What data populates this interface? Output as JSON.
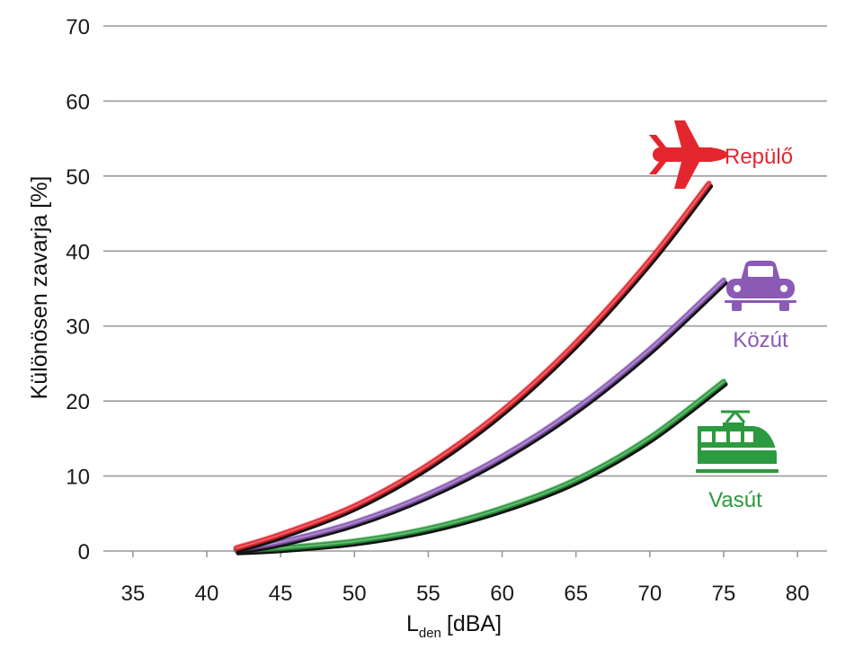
{
  "chart_data": {
    "type": "line",
    "title": "",
    "xlabel": {
      "main": "L",
      "sub": "den",
      "unit": "[dBA]"
    },
    "ylabel": "Különösen zavarja [%]",
    "xlim": [
      33,
      82
    ],
    "ylim": [
      0,
      70
    ],
    "xticks": [
      "35",
      "40",
      "45",
      "50",
      "55",
      "60",
      "65",
      "70",
      "75",
      "80"
    ],
    "yticks": [
      "0",
      "10",
      "20",
      "30",
      "40",
      "50",
      "60",
      "70"
    ],
    "grid": "horizontal",
    "series": [
      {
        "name": "Repülő",
        "color": "#e3262e",
        "icon": "airplane-icon",
        "x": [
          42,
          45,
          50,
          55,
          60,
          65,
          70,
          74
        ],
        "y": [
          0.4,
          2.2,
          6.0,
          11.5,
          18.7,
          27.8,
          38.8,
          49.0
        ]
      },
      {
        "name": "Közút",
        "color": "#8a5ab5",
        "icon": "car-icon",
        "x": [
          42,
          45,
          50,
          55,
          60,
          65,
          70,
          75
        ],
        "y": [
          0.2,
          1.2,
          3.8,
          7.6,
          12.6,
          19.0,
          26.9,
          36.1
        ]
      },
      {
        "name": "Vasút",
        "color": "#2c9a3e",
        "icon": "train-icon",
        "x": [
          42,
          45,
          50,
          55,
          60,
          65,
          70,
          75
        ],
        "y": [
          0.1,
          0.4,
          1.3,
          3.0,
          5.7,
          9.5,
          15.1,
          22.6
        ]
      }
    ]
  }
}
